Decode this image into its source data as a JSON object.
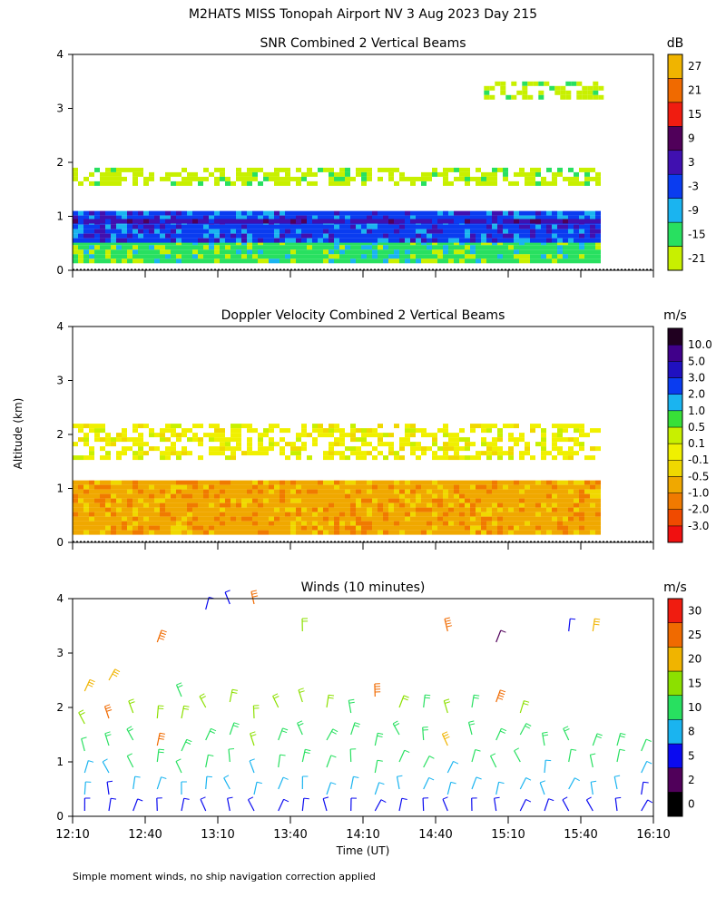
{
  "header": {
    "title": "M2HATS MISS Tonopah Airport NV    3 Aug 2023 Day 215"
  },
  "footer": {
    "note": "Simple moment winds, no ship navigation correction applied"
  },
  "chart_data": [
    {
      "type": "heatmap",
      "title": "SNR Combined 2 Vertical Beams",
      "unit": "dB",
      "ylabel": "",
      "xlabel": "",
      "ylim": [
        0,
        4
      ],
      "yticks": [
        0,
        1,
        2,
        3,
        4
      ],
      "colorbar": {
        "labels": [
          "-21",
          "-15",
          "-9",
          "-3",
          "3",
          "9",
          "15",
          "21",
          "27"
        ],
        "colors": [
          "#c8f000",
          "#28e060",
          "#1ab4f0",
          "#0a3cf0",
          "#4010b0",
          "#50005a",
          "#f01c10",
          "#f06a00",
          "#f0b400"
        ]
      },
      "layers": [
        {
          "name": "near-surface",
          "y_range": [
            0.15,
            0.55
          ],
          "x_range": [
            "12:10",
            "15:48"
          ],
          "value": -15
        },
        {
          "name": "boundary-layer",
          "y_range": [
            0.55,
            1.1
          ],
          "x_range": [
            "12:10",
            "15:48"
          ],
          "value": -3
        },
        {
          "name": "layer-top",
          "y_range": [
            0.9,
            0.95
          ],
          "x_range": [
            "12:10",
            "15:48"
          ],
          "value": 3
        },
        {
          "name": "aloft-1",
          "y_range": [
            1.6,
            1.9
          ],
          "x_range": [
            "12:10",
            "15:48"
          ],
          "value": -21
        },
        {
          "name": "aloft-2",
          "y_range": [
            3.2,
            3.5
          ],
          "x_range": [
            "15:00",
            "15:48"
          ],
          "value": -21
        }
      ]
    },
    {
      "type": "heatmap",
      "title": "Doppler Velocity Combined 2 Vertical Beams",
      "unit": "m/s",
      "ylabel": "Altitude (km)",
      "xlabel": "",
      "ylim": [
        0,
        4
      ],
      "yticks": [
        0,
        1,
        2,
        3,
        4
      ],
      "colorbar": {
        "labels": [
          "-3.0",
          "-2.0",
          "-1.0",
          "-0.5",
          "-0.1",
          "0.1",
          "0.5",
          "1.0",
          "2.0",
          "3.0",
          "5.0",
          "10.0"
        ],
        "colors": [
          "#f01010",
          "#f04a00",
          "#f07a00",
          "#f0a800",
          "#f0d800",
          "#f0f000",
          "#c8f000",
          "#38e038",
          "#1ab4f0",
          "#0a3cf0",
          "#2010c0",
          "#40008a",
          "#200020"
        ]
      },
      "layers": [
        {
          "name": "boundary-layer",
          "y_range": [
            0.15,
            1.15
          ],
          "x_range": [
            "12:10",
            "15:48"
          ],
          "value": -0.5
        },
        {
          "name": "aloft",
          "y_range": [
            1.6,
            2.2
          ],
          "x_range": [
            "12:10",
            "15:48"
          ],
          "value": 0.1
        }
      ]
    },
    {
      "type": "scatter",
      "title": "Winds (10 minutes)",
      "unit": "m/s",
      "xlabel": "Time (UT)",
      "ylabel": "",
      "ylim": [
        0,
        4
      ],
      "yticks": [
        0,
        1,
        2,
        3,
        4
      ],
      "x": [
        "12:10",
        "12:40",
        "13:10",
        "13:40",
        "14:10",
        "14:40",
        "15:10",
        "15:40",
        "16:10"
      ],
      "colorbar": {
        "labels": [
          "0",
          "2",
          "5",
          "8",
          "10",
          "15",
          "20",
          "25",
          "30"
        ],
        "colors": [
          "#000000",
          "#50005a",
          "#0a0af0",
          "#1ab4f0",
          "#28e060",
          "#8ce000",
          "#f0b400",
          "#f06a00",
          "#f01c10"
        ]
      },
      "profiles": [
        {
          "time": "12:15",
          "barbs": [
            [
              0.1,
              6
            ],
            [
              0.4,
              8
            ],
            [
              0.8,
              9
            ],
            [
              1.2,
              11
            ],
            [
              1.7,
              16
            ],
            [
              2.3,
              24
            ]
          ]
        },
        {
          "time": "12:25",
          "barbs": [
            [
              0.1,
              5
            ],
            [
              0.4,
              7
            ],
            [
              0.8,
              9
            ],
            [
              1.3,
              12
            ],
            [
              1.8,
              27
            ],
            [
              2.5,
              22
            ]
          ]
        },
        {
          "time": "12:35",
          "barbs": [
            [
              0.1,
              6
            ],
            [
              0.5,
              9
            ],
            [
              0.9,
              10
            ],
            [
              1.4,
              14
            ],
            [
              1.9,
              17
            ]
          ]
        },
        {
          "time": "12:45",
          "barbs": [
            [
              0.1,
              7
            ],
            [
              0.5,
              8
            ],
            [
              1.0,
              12
            ],
            [
              1.3,
              26
            ],
            [
              1.8,
              19
            ],
            [
              3.2,
              28
            ]
          ]
        },
        {
          "time": "12:55",
          "barbs": [
            [
              0.1,
              6
            ],
            [
              0.4,
              9
            ],
            [
              0.8,
              11
            ],
            [
              1.2,
              14
            ],
            [
              1.8,
              16
            ],
            [
              2.2,
              12
            ]
          ]
        },
        {
          "time": "13:05",
          "barbs": [
            [
              0.1,
              5
            ],
            [
              0.5,
              8
            ],
            [
              0.9,
              10
            ],
            [
              1.4,
              12
            ],
            [
              2.0,
              15
            ],
            [
              3.8,
              6
            ]
          ]
        },
        {
          "time": "13:15",
          "barbs": [
            [
              0.1,
              7
            ],
            [
              0.5,
              9
            ],
            [
              1.0,
              11
            ],
            [
              1.5,
              13
            ],
            [
              2.1,
              15
            ],
            [
              3.9,
              7
            ]
          ]
        },
        {
          "time": "13:25",
          "barbs": [
            [
              0.1,
              6
            ],
            [
              0.4,
              8
            ],
            [
              0.8,
              9
            ],
            [
              1.3,
              18
            ],
            [
              1.8,
              16
            ],
            [
              3.9,
              27
            ]
          ]
        },
        {
          "time": "13:35",
          "barbs": [
            [
              0.1,
              6
            ],
            [
              0.5,
              9
            ],
            [
              0.9,
              11
            ],
            [
              1.4,
              14
            ],
            [
              2.0,
              16
            ]
          ]
        },
        {
          "time": "13:45",
          "barbs": [
            [
              0.1,
              7
            ],
            [
              0.5,
              9
            ],
            [
              1.0,
              12
            ],
            [
              1.5,
              13
            ],
            [
              2.1,
              15
            ],
            [
              3.4,
              16
            ]
          ]
        },
        {
          "time": "13:55",
          "barbs": [
            [
              0.1,
              5
            ],
            [
              0.4,
              8
            ],
            [
              0.9,
              11
            ],
            [
              1.4,
              14
            ],
            [
              2.0,
              15
            ]
          ]
        },
        {
          "time": "14:05",
          "barbs": [
            [
              0.1,
              6
            ],
            [
              0.5,
              8
            ],
            [
              1.0,
              10
            ],
            [
              1.5,
              12
            ],
            [
              1.9,
              14
            ]
          ]
        },
        {
          "time": "14:15",
          "barbs": [
            [
              0.1,
              6
            ],
            [
              0.4,
              9
            ],
            [
              0.8,
              10
            ],
            [
              1.3,
              13
            ],
            [
              2.2,
              28
            ]
          ]
        },
        {
          "time": "14:25",
          "barbs": [
            [
              0.1,
              7
            ],
            [
              0.5,
              8
            ],
            [
              1.0,
              11
            ],
            [
              1.5,
              14
            ],
            [
              2.0,
              16
            ]
          ]
        },
        {
          "time": "14:35",
          "barbs": [
            [
              0.1,
              6
            ],
            [
              0.5,
              9
            ],
            [
              0.9,
              10
            ],
            [
              1.4,
              12
            ],
            [
              2.0,
              14
            ]
          ]
        },
        {
          "time": "14:45",
          "barbs": [
            [
              0.1,
              5
            ],
            [
              0.4,
              8
            ],
            [
              0.8,
              9
            ],
            [
              1.3,
              22
            ],
            [
              1.9,
              15
            ],
            [
              3.4,
              29
            ]
          ]
        },
        {
          "time": "14:55",
          "barbs": [
            [
              0.1,
              6
            ],
            [
              0.5,
              8
            ],
            [
              1.0,
              11
            ],
            [
              1.5,
              13
            ],
            [
              2.0,
              14
            ]
          ]
        },
        {
          "time": "15:05",
          "barbs": [
            [
              0.1,
              6
            ],
            [
              0.4,
              8
            ],
            [
              0.9,
              10
            ],
            [
              1.4,
              13
            ],
            [
              2.1,
              28
            ],
            [
              3.2,
              4
            ]
          ]
        },
        {
          "time": "15:15",
          "barbs": [
            [
              0.1,
              7
            ],
            [
              0.5,
              9
            ],
            [
              1.0,
              11
            ],
            [
              1.5,
              13
            ],
            [
              1.9,
              15
            ]
          ]
        },
        {
          "time": "15:25",
          "barbs": [
            [
              0.1,
              5
            ],
            [
              0.4,
              8
            ],
            [
              0.8,
              9
            ],
            [
              1.3,
              12
            ]
          ]
        },
        {
          "time": "15:35",
          "barbs": [
            [
              0.1,
              6
            ],
            [
              0.5,
              8
            ],
            [
              1.0,
              10
            ],
            [
              1.4,
              13
            ],
            [
              3.4,
              7
            ]
          ]
        },
        {
          "time": "15:45",
          "barbs": [
            [
              0.1,
              6
            ],
            [
              0.4,
              8
            ],
            [
              0.9,
              10
            ],
            [
              1.3,
              12
            ],
            [
              3.4,
              22
            ]
          ]
        },
        {
          "time": "15:55",
          "barbs": [
            [
              0.1,
              6
            ],
            [
              0.5,
              8
            ],
            [
              1.0,
              10
            ],
            [
              1.3,
              12
            ]
          ]
        },
        {
          "time": "16:05",
          "barbs": [
            [
              0.1,
              5
            ],
            [
              0.4,
              7
            ],
            [
              0.8,
              9
            ],
            [
              1.2,
              11
            ]
          ]
        }
      ]
    }
  ]
}
